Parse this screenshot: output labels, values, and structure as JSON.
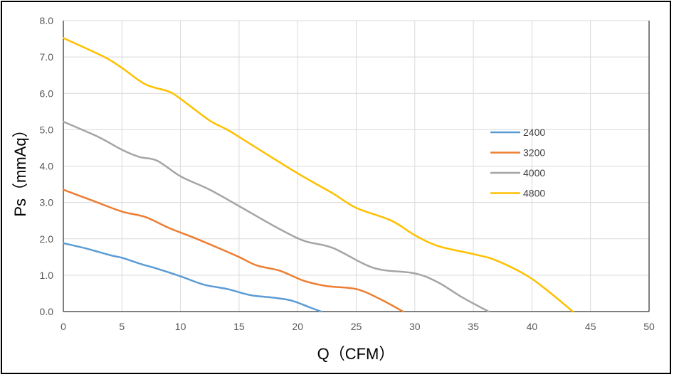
{
  "chart_data": {
    "type": "line",
    "title": "",
    "xlabel": "Q（CFM）",
    "ylabel": "Ps（mmAq）",
    "xlim": [
      0,
      50
    ],
    "ylim": [
      0,
      8
    ],
    "x_ticks": [
      "0",
      "5",
      "10",
      "15",
      "20",
      "25",
      "30",
      "35",
      "40",
      "45",
      "50"
    ],
    "y_ticks": [
      "0.0",
      "1.0",
      "2.0",
      "3.0",
      "4.0",
      "5.0",
      "6.0",
      "7.0",
      "8.0"
    ],
    "grid": true,
    "legend_position": "right",
    "series": [
      {
        "name": "2400",
        "color": "#5B9BD5",
        "x": [
          0,
          2,
          4,
          5,
          6.5,
          8,
          10,
          12,
          14,
          16,
          18,
          19.5,
          21,
          22
        ],
        "y": [
          1.88,
          1.73,
          1.55,
          1.48,
          1.32,
          1.18,
          0.97,
          0.74,
          0.62,
          0.45,
          0.38,
          0.3,
          0.12,
          0.0
        ]
      },
      {
        "name": "3200",
        "color": "#ED7D31",
        "x": [
          0,
          2.5,
          5,
          7,
          9,
          11,
          13,
          15,
          16.5,
          18.5,
          20.5,
          22.5,
          25,
          27,
          29
        ],
        "y": [
          3.35,
          3.05,
          2.75,
          2.6,
          2.3,
          2.05,
          1.78,
          1.5,
          1.27,
          1.12,
          0.85,
          0.7,
          0.62,
          0.35,
          0.0
        ]
      },
      {
        "name": "4000",
        "color": "#A5A5A5",
        "x": [
          0,
          3,
          5,
          6.5,
          8,
          10,
          12.5,
          15,
          18,
          20.5,
          23,
          26.5,
          30,
          32,
          34,
          36.3
        ],
        "y": [
          5.22,
          4.8,
          4.45,
          4.25,
          4.15,
          3.72,
          3.35,
          2.9,
          2.35,
          1.95,
          1.75,
          1.2,
          1.05,
          0.8,
          0.4,
          0.0
        ]
      },
      {
        "name": "4800",
        "color": "#FFC000",
        "x": [
          0,
          3.5,
          5,
          7,
          9,
          10,
          12.5,
          14,
          16,
          20,
          23,
          25,
          28,
          30,
          32,
          35,
          37,
          40,
          43.5
        ],
        "y": [
          7.52,
          7.0,
          6.7,
          6.25,
          6.05,
          5.85,
          5.25,
          5.0,
          4.6,
          3.8,
          3.25,
          2.85,
          2.5,
          2.1,
          1.8,
          1.58,
          1.4,
          0.9,
          0.0
        ]
      }
    ]
  }
}
